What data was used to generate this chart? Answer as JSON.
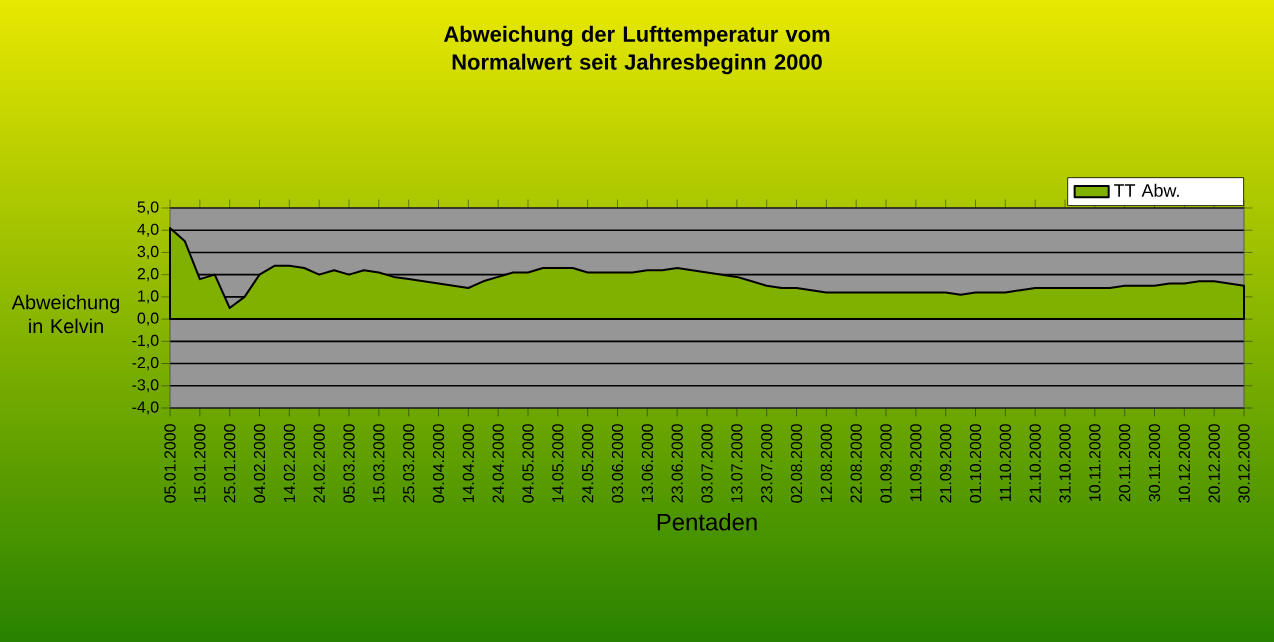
{
  "chart_data": {
    "type": "area",
    "title": "Abweichung der Lufttemperatur vom Normalwert seit Jahresbeginn 2000",
    "xlabel": "Pentaden",
    "ylabel": "Abweichung in Kelvin",
    "categories": [
      "05.01.2000",
      null,
      "15.01.2000",
      null,
      "25.01.2000",
      null,
      "04.02.2000",
      null,
      "14.02.2000",
      null,
      "24.02.2000",
      null,
      "05.03.2000",
      null,
      "15.03.2000",
      null,
      "25.03.2000",
      null,
      "04.04.2000",
      null,
      "14.04.2000",
      null,
      "24.04.2000",
      null,
      "04.05.2000",
      null,
      "14.05.2000",
      null,
      "24.05.2000",
      null,
      "03.06.2000",
      null,
      "13.06.2000",
      null,
      "23.06.2000",
      null,
      "03.07.2000",
      null,
      "13.07.2000",
      null,
      "23.07.2000",
      null,
      "02.08.2000",
      null,
      "12.08.2000",
      null,
      "22.08.2000",
      null,
      "01.09.2000",
      null,
      "11.09.2000",
      null,
      "21.09.2000",
      null,
      "01.10.2000",
      null,
      "11.10.2000",
      null,
      "21.10.2000",
      null,
      "31.10.2000",
      null,
      "10.11.2000",
      null,
      "20.11.2000",
      null,
      "30.11.2000",
      null,
      "10.12.2000",
      null,
      "20.12.2000",
      null,
      "30.12.2000"
    ],
    "series": [
      {
        "name": "TT Abw.",
        "color": "#80b000",
        "values": [
          4.1,
          3.5,
          1.8,
          2.0,
          0.5,
          1.0,
          2.0,
          2.4,
          2.4,
          2.3,
          2.0,
          2.2,
          2.0,
          2.2,
          2.1,
          1.9,
          1.8,
          1.7,
          1.6,
          1.5,
          1.4,
          1.7,
          1.9,
          2.1,
          2.1,
          2.3,
          2.3,
          2.3,
          2.1,
          2.1,
          2.1,
          2.1,
          2.2,
          2.2,
          2.3,
          2.2,
          2.1,
          2.0,
          1.9,
          1.7,
          1.5,
          1.4,
          1.4,
          1.3,
          1.2,
          1.2,
          1.2,
          1.2,
          1.2,
          1.2,
          1.2,
          1.2,
          1.2,
          1.1,
          1.2,
          1.2,
          1.2,
          1.3,
          1.4,
          1.4,
          1.4,
          1.4,
          1.4,
          1.4,
          1.5,
          1.5,
          1.5,
          1.6,
          1.6,
          1.7,
          1.7,
          1.6,
          1.5
        ]
      }
    ],
    "ylim": [
      -4,
      5
    ],
    "yticks": [
      {
        "value": -4,
        "label": "-4,0"
      },
      {
        "value": -3,
        "label": "-3,0"
      },
      {
        "value": -2,
        "label": "-2,0"
      },
      {
        "value": -1,
        "label": "-1,0"
      },
      {
        "value": 0,
        "label": "0,0"
      },
      {
        "value": 1,
        "label": "1,0"
      },
      {
        "value": 2,
        "label": "2,0"
      },
      {
        "value": 3,
        "label": "3,0"
      },
      {
        "value": 4,
        "label": "4,0"
      },
      {
        "value": 5,
        "label": "5,0"
      }
    ],
    "grid": "y",
    "legend": "top right"
  }
}
